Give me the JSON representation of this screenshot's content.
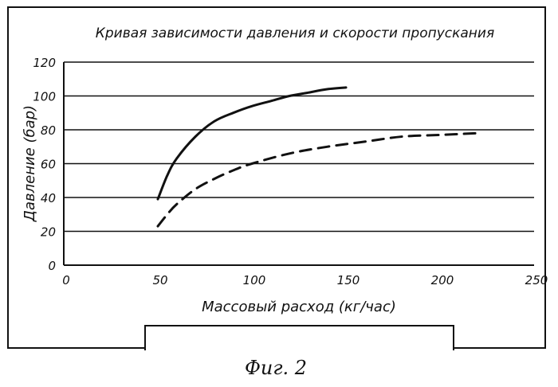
{
  "chart_data": {
    "type": "line",
    "title": "Кривая зависимости давления и скорости пропускания",
    "xlabel": "Массовый расход (кг/час)",
    "ylabel": "Давление (бар)",
    "xlim": [
      0,
      250
    ],
    "ylim": [
      0,
      120
    ],
    "x_ticks": [
      "0",
      "50",
      "100",
      "150",
      "200",
      "250"
    ],
    "y_ticks": [
      "0",
      "20",
      "40",
      "60",
      "80",
      "100",
      "120"
    ],
    "grid": "horizontal",
    "legend": "none",
    "series": [
      {
        "style": "solid",
        "color": "#111111",
        "x": [
          50,
          55,
          60,
          70,
          80,
          90,
          100,
          110,
          120,
          130,
          140,
          150
        ],
        "y": [
          39,
          53,
          63,
          76,
          85,
          90,
          94,
          97,
          100,
          102,
          104,
          105
        ]
      },
      {
        "style": "dashed",
        "color": "#111111",
        "x": [
          50,
          55,
          60,
          70,
          80,
          90,
          100,
          120,
          140,
          160,
          180,
          200,
          220
        ],
        "y": [
          23,
          30,
          36,
          45,
          51,
          56,
          60,
          66,
          70,
          73,
          76,
          77,
          78
        ]
      }
    ]
  },
  "caption": "Фиг. 2"
}
